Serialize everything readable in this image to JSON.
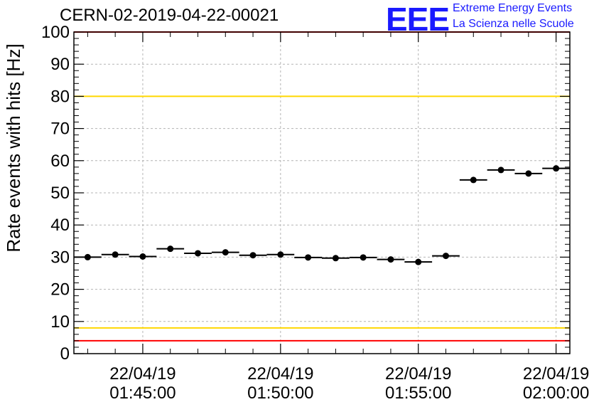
{
  "header": {
    "run_title": "CERN-02-2019-04-22-00021",
    "logo_text": "EEE",
    "logo_line1": "Extreme Energy Events",
    "logo_line2": "La Scienza nelle Scuole"
  },
  "colors": {
    "data": "#000000",
    "red_line": "#ff0000",
    "yellow_line": "#ffd700",
    "grid": "#b4b4b4",
    "logo": "#1a1aff"
  },
  "chart_data": {
    "type": "scatter",
    "title": "CERN-02-2019-04-22-00021",
    "ylabel": "Rate events with hits [Hz]",
    "xlabel": "",
    "ylim": [
      0,
      100
    ],
    "yticks": [
      0,
      10,
      20,
      30,
      40,
      50,
      60,
      70,
      80,
      90,
      100
    ],
    "xlim": [
      "01:42:30",
      "02:00:30"
    ],
    "xticks": [
      {
        "time": "01:45:00",
        "date": "22/04/19"
      },
      {
        "time": "01:50:00",
        "date": "22/04/19"
      },
      {
        "time": "01:55:00",
        "date": "22/04/19"
      },
      {
        "time": "02:00:00",
        "date": "22/04/19"
      }
    ],
    "grid": true,
    "bin_width_seconds": 60,
    "reference_lines": [
      {
        "y": 100,
        "color": "#ff0000"
      },
      {
        "y": 80,
        "color": "#ffd700"
      },
      {
        "y": 8,
        "color": "#ffd700"
      },
      {
        "y": 4,
        "color": "#ff0000"
      }
    ],
    "series": [
      {
        "x": [
          "01:43:00",
          "01:44:00",
          "01:45:00",
          "01:46:00",
          "01:47:00",
          "01:48:00",
          "01:49:00",
          "01:50:00",
          "01:51:00",
          "01:52:00",
          "01:53:00",
          "01:54:00",
          "01:55:00",
          "01:56:00",
          "01:57:00",
          "01:58:00",
          "01:59:00",
          "02:00:00"
        ],
        "values": [
          30.0,
          30.8,
          30.2,
          32.6,
          31.2,
          31.5,
          30.6,
          30.8,
          29.9,
          29.7,
          29.9,
          29.3,
          28.5,
          30.4,
          54.0,
          57.1,
          56.0,
          57.6
        ]
      }
    ]
  }
}
